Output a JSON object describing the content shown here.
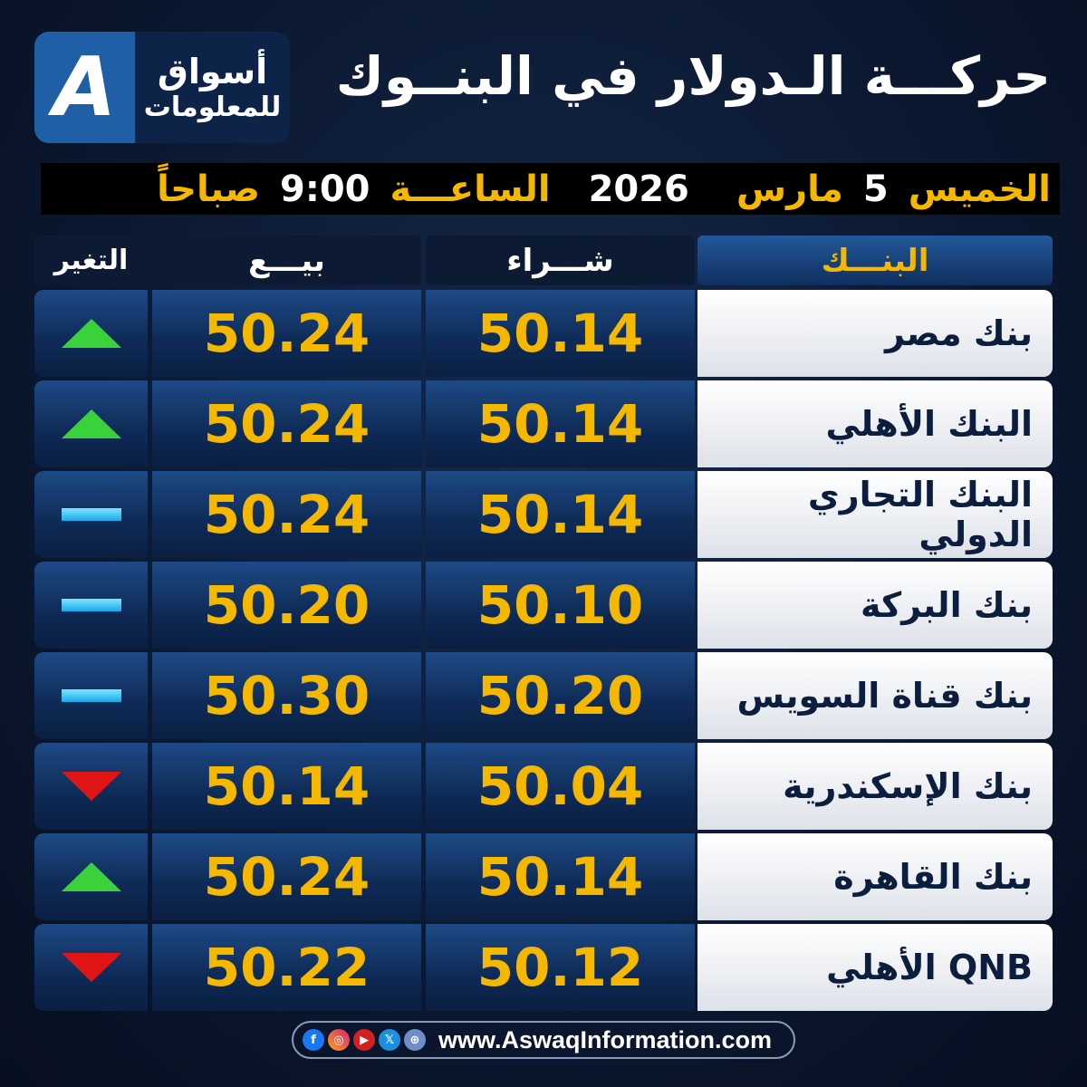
{
  "logo": {
    "letter": "A",
    "line1": "أسواق",
    "line2": "للمعلومات"
  },
  "title": "حركـــة الـدولار في البنــوك",
  "date": {
    "day": "الخميس",
    "daynum": "5",
    "month": "مارس",
    "year": "2026",
    "hour_label": "الساعـــة",
    "time": "9:00",
    "period": "صباحاً"
  },
  "headers": {
    "bank": "البنـــك",
    "buy": "شـــراء",
    "sell": "بيـــع",
    "change": "التغير"
  },
  "rows": [
    {
      "bank": "بنك مصر",
      "buy": "50.14",
      "sell": "50.24",
      "change": "up"
    },
    {
      "bank": "البنك الأهلي",
      "buy": "50.14",
      "sell": "50.24",
      "change": "up"
    },
    {
      "bank": "البنك التجاري الدولي",
      "buy": "50.14",
      "sell": "50.24",
      "change": "flat"
    },
    {
      "bank": "بنك البركة",
      "buy": "50.10",
      "sell": "50.20",
      "change": "flat"
    },
    {
      "bank": "بنك قناة السويس",
      "buy": "50.20",
      "sell": "50.30",
      "change": "flat"
    },
    {
      "bank": "بنك الإسكندرية",
      "buy": "50.04",
      "sell": "50.14",
      "change": "down"
    },
    {
      "bank": "بنك القاهرة",
      "buy": "50.14",
      "sell": "50.24",
      "change": "up"
    },
    {
      "bank": "QNB الأهلي",
      "buy": "50.12",
      "sell": "50.22",
      "change": "down"
    }
  ],
  "footer": {
    "url": "www.AswaqInformation.com",
    "icons": [
      "facebook-icon",
      "instagram-icon",
      "youtube-icon",
      "x-icon",
      "globe-icon"
    ]
  },
  "colors": {
    "accent": "#f5b800",
    "up": "#3ad13a",
    "down": "#e01515",
    "flat": "#17a8e8"
  }
}
